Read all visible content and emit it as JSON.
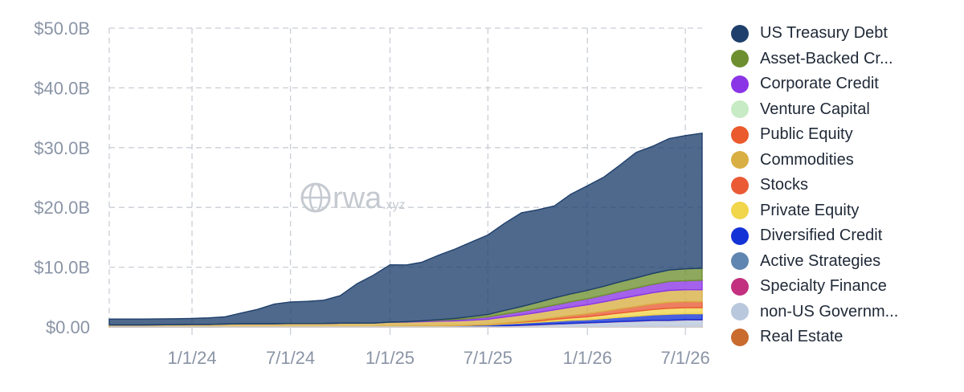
{
  "watermark": {
    "brand": "rwa",
    "suffix": ".xyz"
  },
  "colors": {
    "grid": "#c9ced6",
    "axis": "#cfd4db"
  },
  "chart_data": {
    "type": "area",
    "stacked": true,
    "title": "",
    "xlabel": "",
    "ylabel": "",
    "ylim": [
      0,
      50
    ],
    "y_unit": "billion USD",
    "y_ticks": [
      {
        "value": 0,
        "label": "$0.00"
      },
      {
        "value": 10,
        "label": "$10.0B"
      },
      {
        "value": 20,
        "label": "$20.0B"
      },
      {
        "value": 30,
        "label": "$30.0B"
      },
      {
        "value": 40,
        "label": "$40.0B"
      },
      {
        "value": 50,
        "label": "$50.0B"
      }
    ],
    "x_ticks": [
      "1/1/24",
      "7/1/24",
      "1/1/25",
      "7/1/25",
      "1/1/26",
      "7/1/26"
    ],
    "x": [
      "8/1/23",
      "10/1/23",
      "12/1/23",
      "1/1/24",
      "2/1/24",
      "3/1/24",
      "4/1/24",
      "5/1/24",
      "6/1/24",
      "7/1/24",
      "8/1/24",
      "9/1/24",
      "10/1/24",
      "11/1/24",
      "12/1/24",
      "1/1/25",
      "2/1/25",
      "3/1/25",
      "4/1/25",
      "5/1/25",
      "6/1/25",
      "7/1/25",
      "8/1/25",
      "9/1/25",
      "10/1/25",
      "11/1/25",
      "12/1/25",
      "1/1/26",
      "2/1/26",
      "3/1/26",
      "4/1/26",
      "5/1/26",
      "6/1/26",
      "7/1/26",
      "8/1/26"
    ],
    "grid": true,
    "legend_position": "right",
    "series": [
      {
        "name": "Real Estate",
        "color": "#c96a2e",
        "values": [
          0.02,
          0.02,
          0.02,
          0.02,
          0.02,
          0.03,
          0.03,
          0.03,
          0.03,
          0.03,
          0.03,
          0.03,
          0.03,
          0.03,
          0.04,
          0.04,
          0.04,
          0.04,
          0.04,
          0.05,
          0.05,
          0.05,
          0.05,
          0.05,
          0.05,
          0.06,
          0.06,
          0.06,
          0.06,
          0.06,
          0.06,
          0.07,
          0.07,
          0.07,
          0.07
        ]
      },
      {
        "name": "non-US Government Debt",
        "color": "#b9c8dc",
        "values": [
          0,
          0,
          0,
          0,
          0,
          0,
          0,
          0,
          0,
          0,
          0,
          0,
          0,
          0,
          0,
          0,
          0,
          0,
          0,
          0,
          0,
          0,
          0.1,
          0.2,
          0.3,
          0.4,
          0.5,
          0.6,
          0.7,
          0.8,
          0.9,
          1.0,
          1.0,
          1.1,
          1.1
        ]
      },
      {
        "name": "Specialty Finance",
        "color": "#c2307f",
        "values": [
          0,
          0,
          0,
          0,
          0,
          0,
          0,
          0,
          0,
          0,
          0,
          0,
          0,
          0,
          0,
          0,
          0,
          0,
          0.01,
          0.02,
          0.03,
          0.04,
          0.05,
          0.05,
          0.05,
          0.05,
          0.05,
          0.05,
          0.05,
          0.05,
          0.05,
          0.05,
          0.05,
          0.05,
          0.05
        ]
      },
      {
        "name": "Active Strategies",
        "color": "#5f86b0",
        "values": [
          0,
          0,
          0,
          0,
          0,
          0,
          0,
          0,
          0,
          0,
          0,
          0,
          0,
          0,
          0,
          0,
          0,
          0,
          0,
          0,
          0,
          0,
          0,
          0,
          0,
          0,
          0,
          0,
          0,
          0,
          0,
          0,
          0,
          0,
          0
        ]
      },
      {
        "name": "Diversified Credit",
        "color": "#1433d6",
        "values": [
          0,
          0,
          0,
          0,
          0,
          0,
          0,
          0,
          0,
          0,
          0,
          0,
          0,
          0,
          0,
          0.05,
          0.08,
          0.1,
          0.12,
          0.15,
          0.2,
          0.25,
          0.3,
          0.35,
          0.4,
          0.45,
          0.5,
          0.5,
          0.6,
          0.7,
          0.8,
          0.9,
          1.0,
          1.0,
          1.0
        ]
      },
      {
        "name": "Private Equity",
        "color": "#f1d54a",
        "values": [
          0,
          0,
          0,
          0,
          0,
          0,
          0,
          0,
          0,
          0,
          0,
          0,
          0,
          0,
          0,
          0,
          0,
          0,
          0,
          0,
          0,
          0.05,
          0.1,
          0.15,
          0.2,
          0.3,
          0.4,
          0.5,
          0.6,
          0.7,
          0.8,
          0.9,
          1.0,
          1.0,
          1.0
        ]
      },
      {
        "name": "Stocks",
        "color": "#e95a35",
        "values": [
          0,
          0,
          0,
          0,
          0,
          0,
          0,
          0,
          0,
          0,
          0,
          0,
          0,
          0,
          0,
          0,
          0,
          0,
          0,
          0,
          0,
          0,
          0.05,
          0.1,
          0.2,
          0.3,
          0.4,
          0.5,
          0.6,
          0.7,
          0.8,
          0.9,
          1.0,
          1.0,
          1.0
        ]
      },
      {
        "name": "Commodities",
        "color": "#d9ae42",
        "values": [
          0.3,
          0.3,
          0.35,
          0.4,
          0.4,
          0.45,
          0.5,
          0.5,
          0.5,
          0.55,
          0.55,
          0.55,
          0.6,
          0.6,
          0.6,
          0.7,
          0.7,
          0.75,
          0.8,
          0.8,
          0.85,
          0.9,
          1.0,
          1.1,
          1.2,
          1.3,
          1.4,
          1.5,
          1.6,
          1.7,
          1.8,
          1.9,
          2.0,
          2.0,
          2.0
        ]
      },
      {
        "name": "Public Equity",
        "color": "#ea5a2c",
        "values": [
          0,
          0,
          0,
          0,
          0,
          0,
          0,
          0,
          0,
          0,
          0,
          0,
          0,
          0,
          0,
          0,
          0,
          0,
          0,
          0,
          0,
          0,
          0,
          0,
          0,
          0,
          0,
          0,
          0,
          0,
          0,
          0,
          0,
          0,
          0
        ]
      },
      {
        "name": "Venture Capital",
        "color": "#c7ebc4",
        "values": [
          0,
          0,
          0,
          0,
          0,
          0,
          0,
          0,
          0,
          0,
          0,
          0,
          0,
          0,
          0,
          0,
          0,
          0,
          0,
          0,
          0,
          0,
          0,
          0,
          0,
          0,
          0,
          0,
          0,
          0,
          0,
          0,
          0,
          0,
          0
        ]
      },
      {
        "name": "Corporate Credit",
        "color": "#8a35e6",
        "values": [
          0,
          0,
          0,
          0,
          0,
          0,
          0,
          0,
          0,
          0,
          0,
          0,
          0,
          0,
          0,
          0,
          0.05,
          0.1,
          0.15,
          0.2,
          0.3,
          0.4,
          0.5,
          0.6,
          0.7,
          0.8,
          0.9,
          1.0,
          1.1,
          1.2,
          1.3,
          1.4,
          1.5,
          1.5,
          1.6
        ]
      },
      {
        "name": "Asset-Backed Credit",
        "color": "#6e8f2f",
        "values": [
          0,
          0,
          0,
          0,
          0,
          0,
          0,
          0,
          0,
          0,
          0,
          0,
          0,
          0,
          0,
          0,
          0,
          0.05,
          0.1,
          0.2,
          0.3,
          0.4,
          0.6,
          0.8,
          1.0,
          1.2,
          1.3,
          1.4,
          1.5,
          1.6,
          1.7,
          1.8,
          1.9,
          2.0,
          2.0
        ]
      },
      {
        "name": "US Treasury Debt",
        "color": "#1e3f6b",
        "values": [
          1.0,
          1.0,
          1.0,
          1.0,
          1.1,
          1.2,
          1.8,
          2.4,
          3.3,
          3.6,
          3.7,
          3.9,
          4.6,
          6.6,
          8.0,
          9.6,
          9.5,
          9.8,
          10.8,
          11.6,
          12.5,
          13.3,
          14.6,
          15.7,
          15.5,
          15.4,
          16.7,
          17.5,
          18.3,
          19.5,
          21.0,
          21.3,
          22.0,
          22.3,
          22.6
        ]
      }
    ]
  },
  "legend": [
    {
      "label": "US Treasury Debt",
      "color": "#1e3f6b"
    },
    {
      "label": "Asset-Backed Cr...",
      "color": "#6e8f2f"
    },
    {
      "label": "Corporate Credit",
      "color": "#8a35e6"
    },
    {
      "label": "Venture Capital",
      "color": "#c7ebc4"
    },
    {
      "label": "Public Equity",
      "color": "#ea5a2c"
    },
    {
      "label": "Commodities",
      "color": "#d9ae42"
    },
    {
      "label": "Stocks",
      "color": "#e95a35"
    },
    {
      "label": "Private Equity",
      "color": "#f1d54a"
    },
    {
      "label": "Diversified Credit",
      "color": "#1433d6"
    },
    {
      "label": "Active Strategies",
      "color": "#5f86b0"
    },
    {
      "label": "Specialty Finance",
      "color": "#c2307f"
    },
    {
      "label": "non-US Governm...",
      "color": "#b9c8dc"
    },
    {
      "label": "Real Estate",
      "color": "#c96a2e"
    }
  ]
}
